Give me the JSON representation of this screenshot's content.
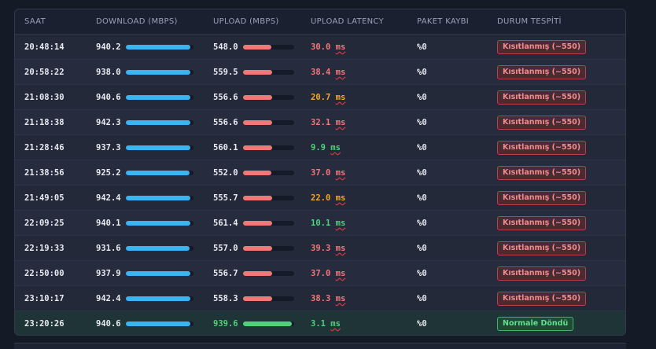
{
  "columns": {
    "time": "SAAT",
    "download": "DOWNLOAD (MBPS)",
    "upload": "UPLOAD (MBPS)",
    "latency": "UPLOAD LATENCY",
    "loss": "PAKET KAYBI",
    "status": "DURUM TESPİTİ"
  },
  "colors": {
    "download_bar": "#3ab4f2",
    "upload_bar_restricted": "#f07878",
    "upload_bar_normal": "#4fd07a",
    "latency_high": "#f07878",
    "latency_medium": "#f5a623",
    "latency_low": "#4fd07a"
  },
  "latency_unit": "ms",
  "rows": [
    {
      "time": "20:48:14",
      "download": "940.2",
      "download_fill": 0.95,
      "upload": "548.0",
      "upload_fill": 0.56,
      "latency": "30.0",
      "latency_level": "red",
      "loss": "%0",
      "status": "Kısıtlanmış (~550)",
      "status_type": "restricted"
    },
    {
      "time": "20:58:22",
      "download": "938.0",
      "download_fill": 0.95,
      "upload": "559.5",
      "upload_fill": 0.57,
      "latency": "38.4",
      "latency_level": "red",
      "loss": "%0",
      "status": "Kısıtlanmış (~550)",
      "status_type": "restricted"
    },
    {
      "time": "21:08:30",
      "download": "940.6",
      "download_fill": 0.95,
      "upload": "556.6",
      "upload_fill": 0.57,
      "latency": "20.7",
      "latency_level": "orange",
      "loss": "%0",
      "status": "Kısıtlanmış (~550)",
      "status_type": "restricted"
    },
    {
      "time": "21:18:38",
      "download": "942.3",
      "download_fill": 0.95,
      "upload": "556.6",
      "upload_fill": 0.57,
      "latency": "32.1",
      "latency_level": "red",
      "loss": "%0",
      "status": "Kısıtlanmış (~550)",
      "status_type": "restricted"
    },
    {
      "time": "21:28:46",
      "download": "937.3",
      "download_fill": 0.95,
      "upload": "560.1",
      "upload_fill": 0.57,
      "latency": "9.9",
      "latency_level": "green",
      "loss": "%0",
      "status": "Kısıtlanmış (~550)",
      "status_type": "restricted"
    },
    {
      "time": "21:38:56",
      "download": "925.2",
      "download_fill": 0.94,
      "upload": "552.0",
      "upload_fill": 0.56,
      "latency": "37.0",
      "latency_level": "red",
      "loss": "%0",
      "status": "Kısıtlanmış (~550)",
      "status_type": "restricted"
    },
    {
      "time": "21:49:05",
      "download": "942.4",
      "download_fill": 0.95,
      "upload": "555.7",
      "upload_fill": 0.57,
      "latency": "22.0",
      "latency_level": "orange",
      "loss": "%0",
      "status": "Kısıtlanmış (~550)",
      "status_type": "restricted"
    },
    {
      "time": "22:09:25",
      "download": "940.1",
      "download_fill": 0.95,
      "upload": "561.4",
      "upload_fill": 0.57,
      "latency": "10.1",
      "latency_level": "green",
      "loss": "%0",
      "status": "Kısıtlanmış (~550)",
      "status_type": "restricted"
    },
    {
      "time": "22:19:33",
      "download": "931.6",
      "download_fill": 0.94,
      "upload": "557.0",
      "upload_fill": 0.57,
      "latency": "39.3",
      "latency_level": "red",
      "loss": "%0",
      "status": "Kısıtlanmış (~550)",
      "status_type": "restricted"
    },
    {
      "time": "22:50:00",
      "download": "937.9",
      "download_fill": 0.95,
      "upload": "556.7",
      "upload_fill": 0.57,
      "latency": "37.0",
      "latency_level": "red",
      "loss": "%0",
      "status": "Kısıtlanmış (~550)",
      "status_type": "restricted"
    },
    {
      "time": "23:10:17",
      "download": "942.4",
      "download_fill": 0.95,
      "upload": "558.3",
      "upload_fill": 0.57,
      "latency": "38.3",
      "latency_level": "red",
      "loss": "%0",
      "status": "Kısıtlanmış (~550)",
      "status_type": "restricted"
    },
    {
      "time": "23:20:26",
      "download": "940.6",
      "download_fill": 0.95,
      "upload": "939.6",
      "upload_fill": 0.95,
      "latency": "3.1",
      "latency_level": "green",
      "loss": "%0",
      "status": "Normale Döndü",
      "status_type": "ok"
    }
  ]
}
